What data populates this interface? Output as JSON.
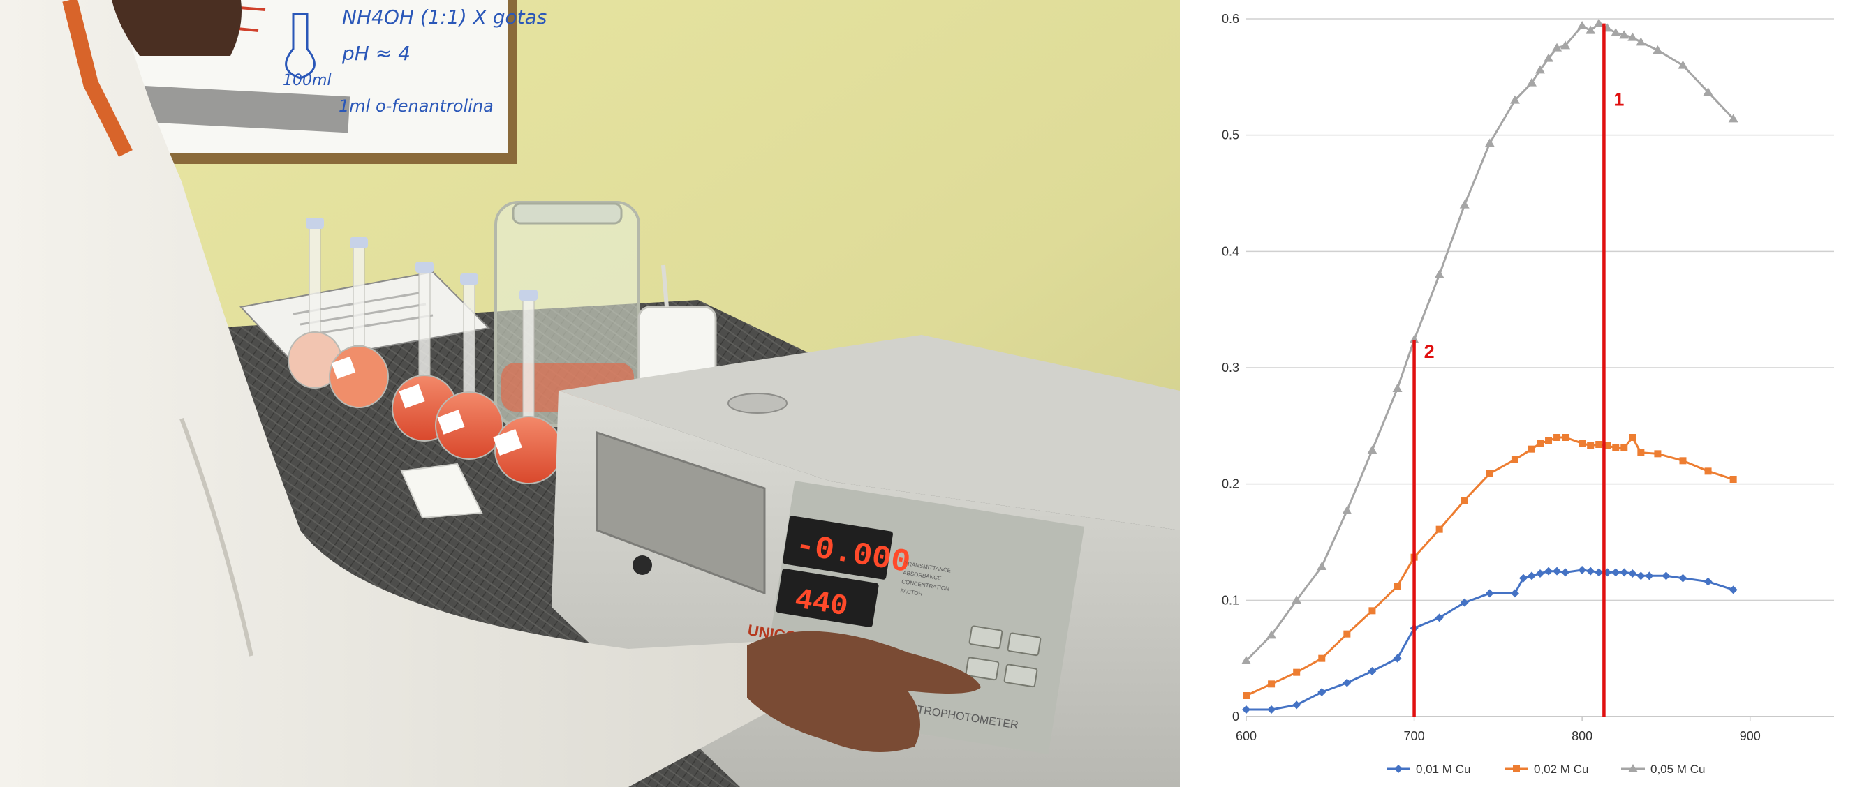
{
  "photo": {
    "whiteboard_lines": [
      "NH4OH (1:1) X gotas",
      "pH ≈ 4",
      "100ml",
      "1ml o-fenantrolina"
    ],
    "display_readings": [
      "-0.000",
      "440"
    ],
    "brand_label": "UNICO",
    "instrument_label": "SPECTROPHOTOMETER",
    "mode_labels": [
      "TRANSMITTANCE",
      "ABSORBANCE",
      "CONCENTRATION",
      "FACTOR"
    ]
  },
  "chart_data": {
    "type": "line",
    "title": "",
    "xlabel": "",
    "ylabel": "",
    "xlim": [
      600,
      950
    ],
    "ylim": [
      0,
      0.6
    ],
    "x_ticks": [
      "600",
      "700",
      "800",
      "900"
    ],
    "y_ticks": [
      "0",
      "0.1",
      "0.2",
      "0.3",
      "0.4",
      "0.5",
      "0.6"
    ],
    "grid": "horizontal",
    "legend_position": "bottom",
    "series": [
      {
        "name": "0,01 M Cu",
        "color": "#4472c4",
        "marker": "diamond",
        "x": [
          600,
          615,
          630,
          645,
          660,
          675,
          690,
          700,
          715,
          730,
          745,
          760,
          765,
          770,
          775,
          780,
          785,
          790,
          800,
          805,
          810,
          815,
          820,
          825,
          830,
          835,
          840,
          850,
          860,
          875,
          890
        ],
        "y": [
          0.006,
          0.006,
          0.01,
          0.021,
          0.029,
          0.039,
          0.05,
          0.076,
          0.085,
          0.098,
          0.106,
          0.106,
          0.119,
          0.121,
          0.123,
          0.125,
          0.125,
          0.124,
          0.126,
          0.125,
          0.124,
          0.124,
          0.124,
          0.124,
          0.123,
          0.121,
          0.121,
          0.121,
          0.119,
          0.116,
          0.109
        ]
      },
      {
        "name": "0,02 M Cu",
        "color": "#ed7d31",
        "marker": "square",
        "x": [
          600,
          615,
          630,
          645,
          660,
          675,
          690,
          700,
          715,
          730,
          745,
          760,
          770,
          775,
          780,
          785,
          790,
          800,
          805,
          810,
          815,
          820,
          825,
          830,
          835,
          845,
          860,
          875,
          890
        ],
        "y": [
          0.018,
          0.028,
          0.038,
          0.05,
          0.071,
          0.091,
          0.112,
          0.137,
          0.161,
          0.186,
          0.209,
          0.221,
          0.23,
          0.235,
          0.237,
          0.24,
          0.24,
          0.235,
          0.233,
          0.234,
          0.233,
          0.231,
          0.231,
          0.24,
          0.227,
          0.226,
          0.22,
          0.211,
          0.204
        ]
      },
      {
        "name": "0,05 M Cu",
        "color": "#a5a5a5",
        "marker": "triangle",
        "x": [
          600,
          615,
          630,
          645,
          660,
          675,
          690,
          700,
          715,
          730,
          745,
          760,
          770,
          775,
          780,
          785,
          790,
          800,
          805,
          810,
          815,
          820,
          825,
          830,
          835,
          845,
          860,
          875,
          890
        ],
        "y": [
          0.048,
          0.07,
          0.1,
          0.129,
          0.177,
          0.229,
          0.282,
          0.324,
          0.38,
          0.44,
          0.493,
          0.53,
          0.545,
          0.556,
          0.566,
          0.575,
          0.577,
          0.594,
          0.59,
          0.596,
          0.592,
          0.588,
          0.586,
          0.584,
          0.58,
          0.573,
          0.56,
          0.537,
          0.514
        ]
      }
    ],
    "annotations": [
      {
        "label": "1",
        "x": 813,
        "y_top": 0.596,
        "color": "#e01010"
      },
      {
        "label": "2",
        "x": 700,
        "y_top": 0.324,
        "color": "#e01010"
      }
    ]
  }
}
